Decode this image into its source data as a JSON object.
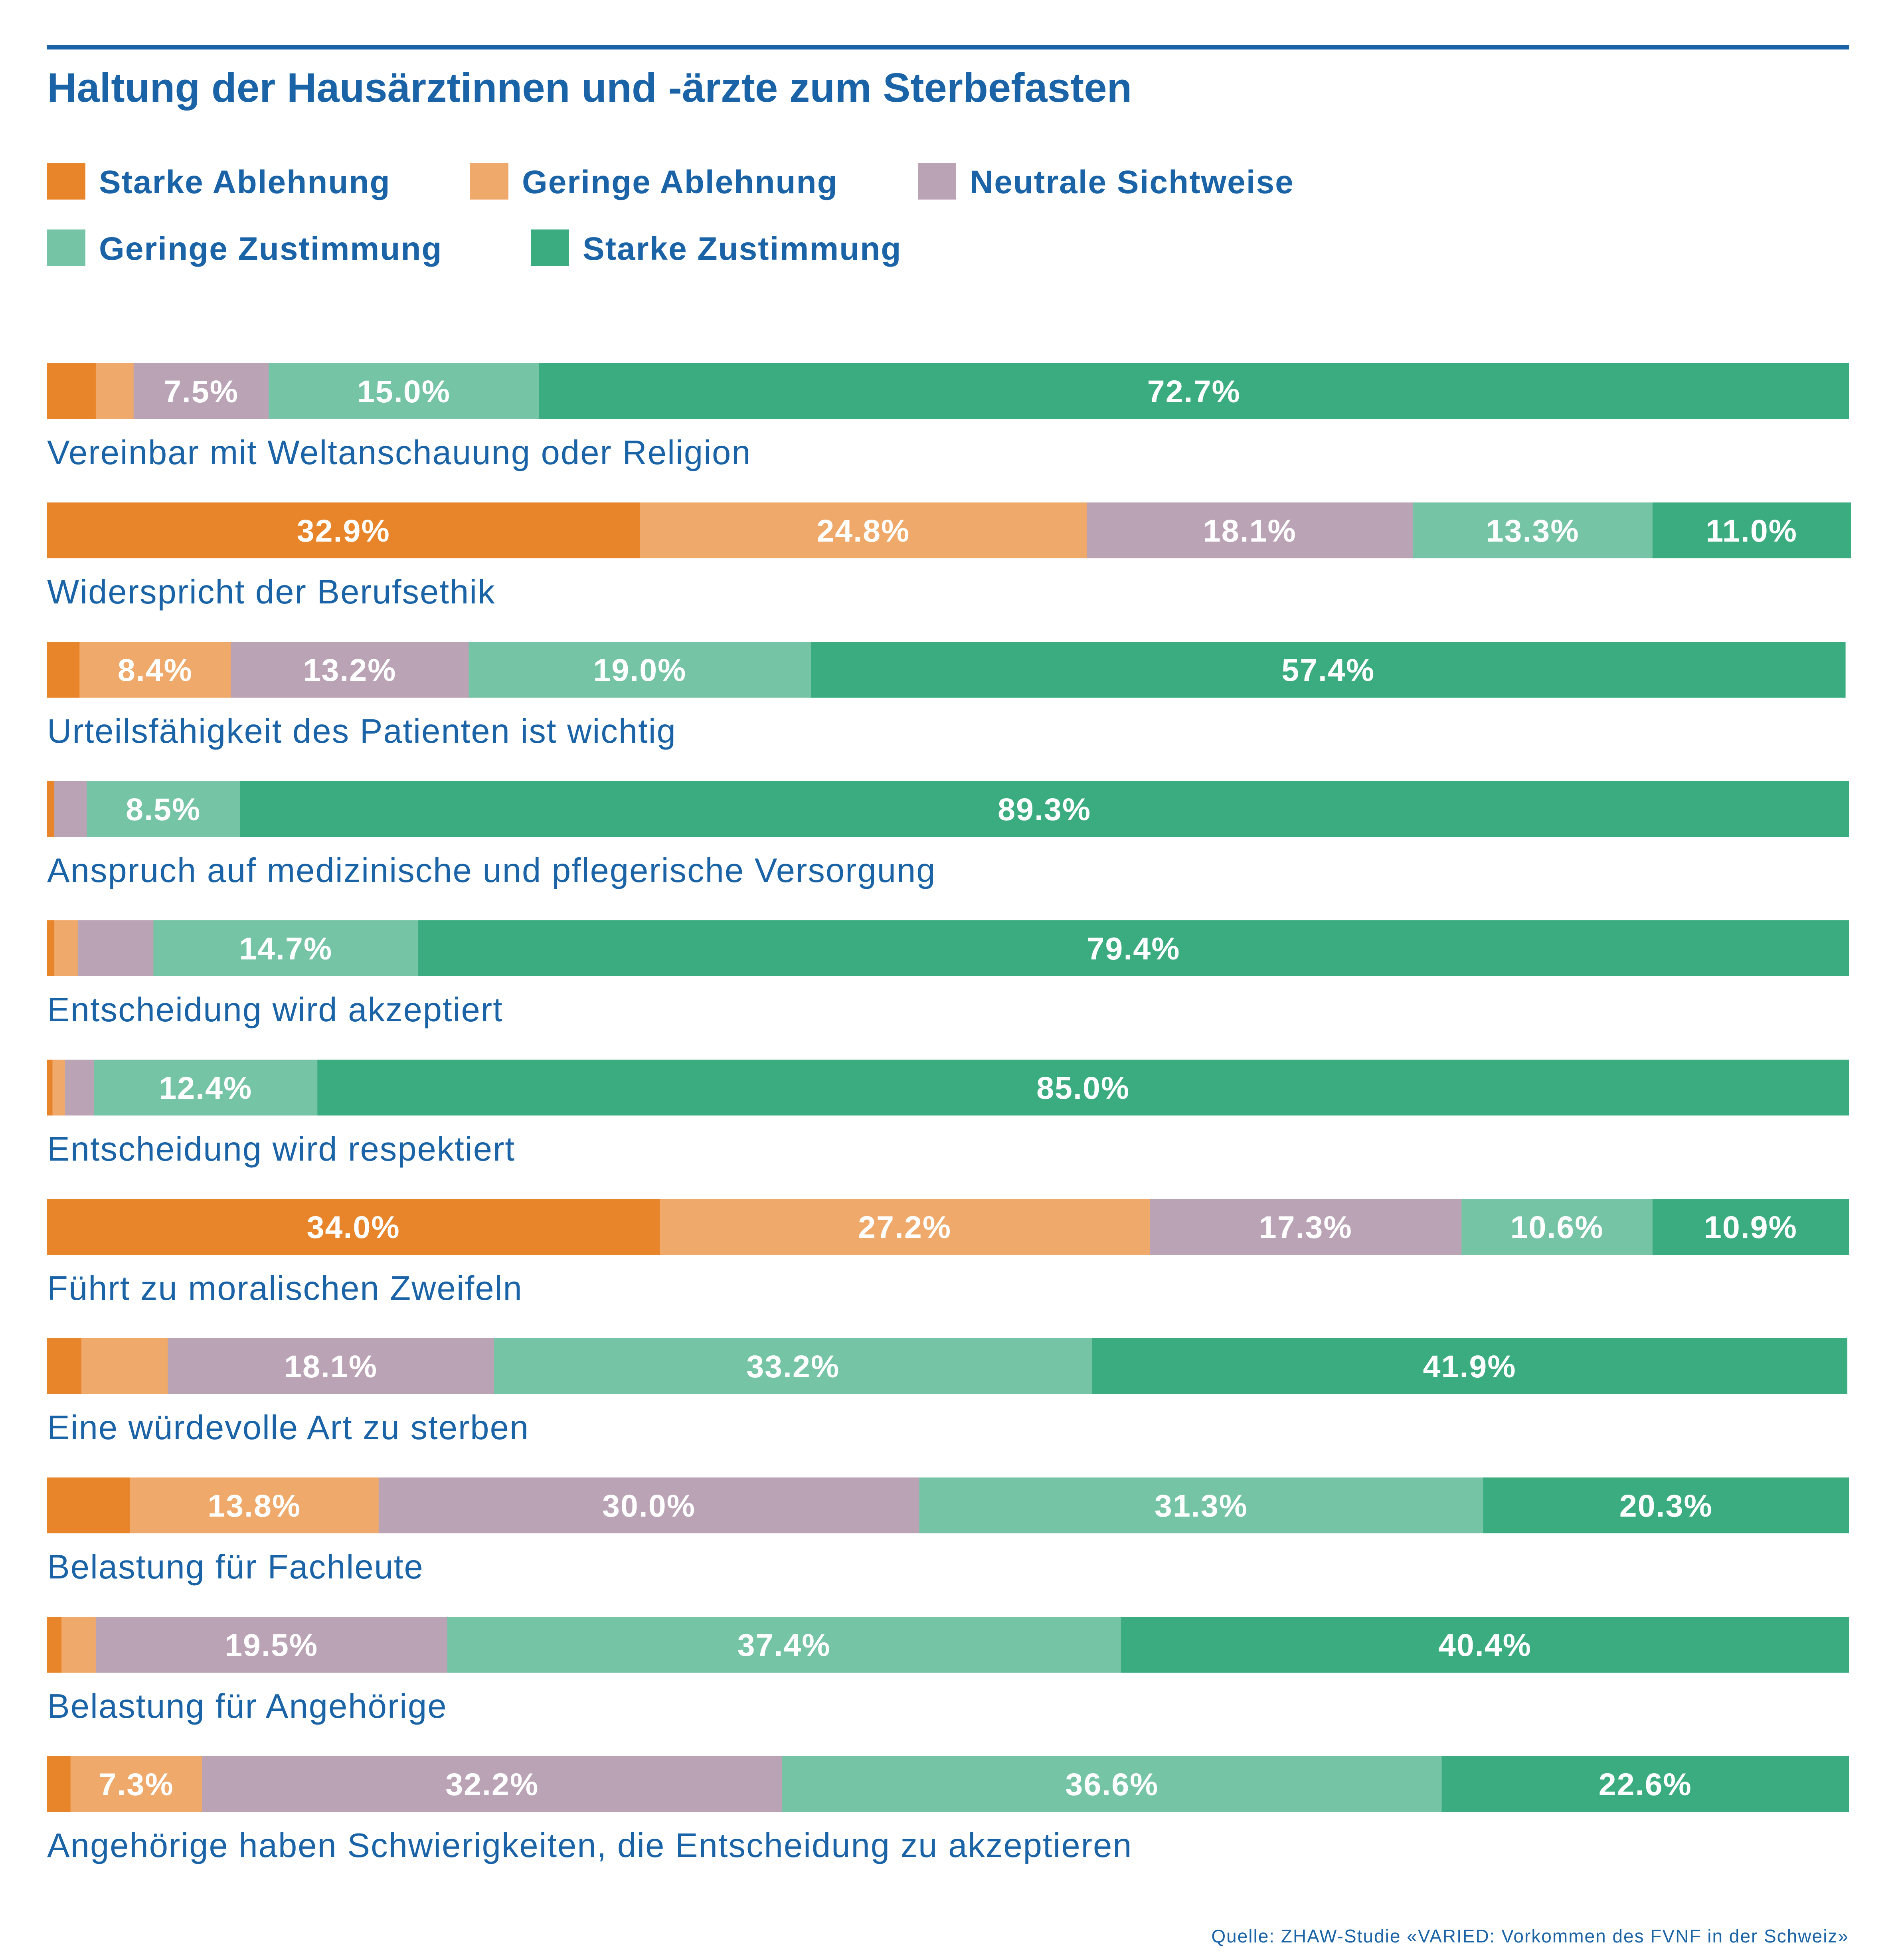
{
  "chart_data": {
    "type": "bar",
    "orientation": "horizontal",
    "stacked": true,
    "title": "Haltung der Hausärztinnen und -ärzte zum Sterbefasten",
    "source": "Quelle: ZHAW-Studie «VARIED: Vorkommen des FVNF in der Schweiz»",
    "legend_position": "top-left",
    "categories": [
      "Vereinbar mit Weltanschauung oder Religion",
      "Widerspricht der Berufsethik",
      "Urteilsfähigkeit des Patienten ist wichtig",
      "Anspruch auf medizinische und pflegerische Versorgung",
      "Entscheidung wird akzeptiert",
      "Entscheidung wird respektiert",
      "Führt zu moralischen Zweifeln",
      "Eine würdevolle Art zu sterben",
      "Belastung für Fachleute",
      "Belastung für Angehörige",
      "Angehörige haben Schwierigkeiten, die Entscheidung zu akzeptieren"
    ],
    "series": [
      {
        "name": "Starke Ablehnung",
        "color": "#e8852a",
        "values": [
          2.7,
          32.9,
          1.8,
          0.4,
          0.4,
          0.3,
          34.0,
          1.9,
          4.6,
          0.8,
          1.3
        ],
        "labels": [
          "",
          "32.9%",
          "",
          "",
          "",
          "",
          "34.0%",
          "",
          "",
          "",
          ""
        ]
      },
      {
        "name": "Geringe Ablehnung",
        "color": "#efa96a",
        "values": [
          2.1,
          24.8,
          8.4,
          0.0,
          1.3,
          0.7,
          27.2,
          4.8,
          13.8,
          1.9,
          7.3
        ],
        "labels": [
          "",
          "24.8%",
          "8.4%",
          "",
          "",
          "",
          "27.2%",
          "",
          "13.8%",
          "",
          "7.3%"
        ]
      },
      {
        "name": "Neutrale Sichtweise",
        "color": "#bba3b6",
        "values": [
          7.5,
          18.1,
          13.2,
          1.8,
          4.2,
          1.6,
          17.3,
          18.1,
          30.0,
          19.5,
          32.2
        ],
        "labels": [
          "7.5%",
          "18.1%",
          "13.2%",
          "",
          "",
          "",
          "17.3%",
          "18.1%",
          "30.0%",
          "19.5%",
          "32.2%"
        ]
      },
      {
        "name": "Geringe Zustimmung",
        "color": "#76c4a6",
        "values": [
          15.0,
          13.3,
          19.0,
          8.5,
          14.7,
          12.4,
          10.6,
          33.2,
          31.3,
          37.4,
          36.6
        ],
        "labels": [
          "15.0%",
          "13.3%",
          "19.0%",
          "8.5%",
          "14.7%",
          "12.4%",
          "10.6%",
          "33.2%",
          "31.3%",
          "37.4%",
          "36.6%"
        ]
      },
      {
        "name": "Starke Zustimmung",
        "color": "#3aac80",
        "values": [
          72.7,
          11.0,
          57.4,
          89.3,
          79.4,
          85.0,
          10.9,
          41.9,
          20.3,
          40.4,
          22.6
        ],
        "labels": [
          "72.7%",
          "11.0%",
          "57.4%",
          "89.3%",
          "79.4%",
          "85.0%",
          "10.9%",
          "41.9%",
          "20.3%",
          "40.4%",
          "22.6%"
        ]
      }
    ],
    "xlim": [
      0,
      100
    ],
    "grid": false
  },
  "colors": {
    "brand": "#1a63a6",
    "background": "#ffffff"
  }
}
